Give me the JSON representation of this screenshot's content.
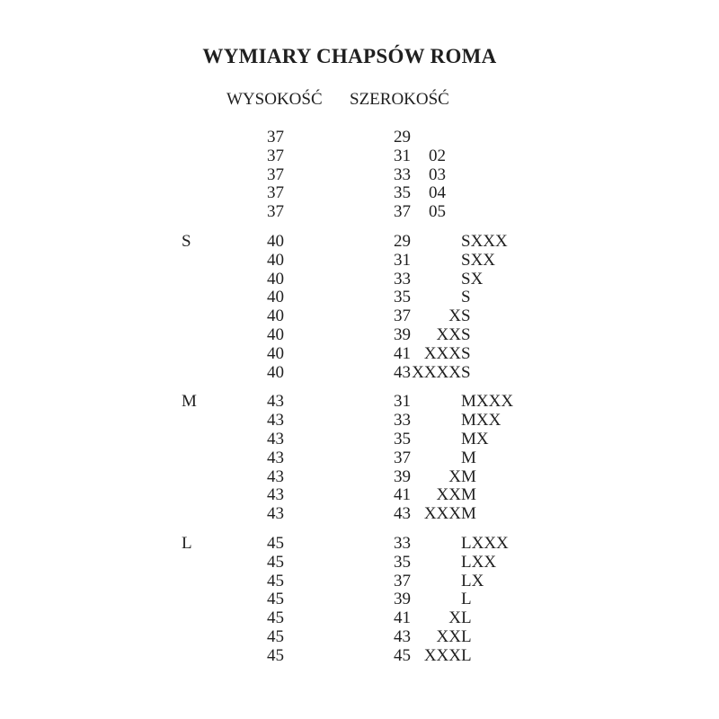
{
  "title": "WYMIARY CHAPSÓW ROMA",
  "columns": {
    "height_label": "WYSOKOŚĆ",
    "width_label": "SZEROKOŚĆ"
  },
  "text_color": "#1f1f1f",
  "background_color": "#ffffff",
  "groups": [
    {
      "letter": "",
      "rows": [
        {
          "h": "37",
          "w": "29",
          "code": "",
          "pre": "",
          "label": ""
        },
        {
          "h": "37",
          "w": "31",
          "code": "02",
          "pre": "",
          "label": ""
        },
        {
          "h": "37",
          "w": "33",
          "code": "03",
          "pre": "",
          "label": ""
        },
        {
          "h": "37",
          "w": "35",
          "code": "04",
          "pre": "",
          "label": ""
        },
        {
          "h": "37",
          "w": "37",
          "code": "05",
          "pre": "",
          "label": ""
        }
      ]
    },
    {
      "letter": "S",
      "rows": [
        {
          "h": "40",
          "w": "29",
          "code": "",
          "pre": "",
          "label": "SXXX"
        },
        {
          "h": "40",
          "w": "31",
          "code": "",
          "pre": "",
          "label": "SXX"
        },
        {
          "h": "40",
          "w": "33",
          "code": "",
          "pre": "",
          "label": "SX"
        },
        {
          "h": "40",
          "w": "35",
          "code": "",
          "pre": "",
          "label": "S"
        },
        {
          "h": "40",
          "w": "37",
          "code": "",
          "pre": "X",
          "label": "S"
        },
        {
          "h": "40",
          "w": "39",
          "code": "",
          "pre": "XX",
          "label": "S"
        },
        {
          "h": "40",
          "w": "41",
          "code": "",
          "pre": "XXX",
          "label": "S"
        },
        {
          "h": "40",
          "w": "43",
          "code": "",
          "pre": "XXXX",
          "label": "S"
        }
      ]
    },
    {
      "letter": "M",
      "rows": [
        {
          "h": "43",
          "w": "31",
          "code": "",
          "pre": "",
          "label": "MXXX"
        },
        {
          "h": "43",
          "w": "33",
          "code": "",
          "pre": "",
          "label": "MXX"
        },
        {
          "h": "43",
          "w": "35",
          "code": "",
          "pre": "",
          "label": "MX"
        },
        {
          "h": "43",
          "w": "37",
          "code": "",
          "pre": "",
          "label": "M"
        },
        {
          "h": "43",
          "w": "39",
          "code": "",
          "pre": "X",
          "label": "M"
        },
        {
          "h": "43",
          "w": "41",
          "code": "",
          "pre": "XX",
          "label": "M"
        },
        {
          "h": "43",
          "w": "43",
          "code": "",
          "pre": "XXX",
          "label": "M"
        }
      ]
    },
    {
      "letter": "L",
      "rows": [
        {
          "h": "45",
          "w": "33",
          "code": "",
          "pre": "",
          "label": "LXXX"
        },
        {
          "h": "45",
          "w": "35",
          "code": "",
          "pre": "",
          "label": "LXX"
        },
        {
          "h": "45",
          "w": "37",
          "code": "",
          "pre": "",
          "label": "LX"
        },
        {
          "h": "45",
          "w": "39",
          "code": "",
          "pre": "",
          "label": "L"
        },
        {
          "h": "45",
          "w": "41",
          "code": "",
          "pre": "X",
          "label": "L"
        },
        {
          "h": "45",
          "w": "43",
          "code": "",
          "pre": "XX",
          "label": "L"
        },
        {
          "h": "45",
          "w": "45",
          "code": "",
          "pre": "XXX",
          "label": "L"
        }
      ]
    }
  ]
}
